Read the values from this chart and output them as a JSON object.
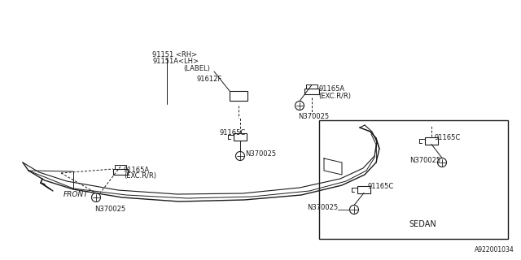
{
  "bg_color": "#ffffff",
  "line_color": "#1a1a1a",
  "text_color": "#1a1a1a",
  "part_number_bottom": "A922001034",
  "labels": {
    "front": "FRONT",
    "sedan": "SEDAN",
    "label_bracket": "(LABEL)",
    "p91151_rh": "91151 <RH>",
    "p91151_lh": "91151A<LH>",
    "p91165a_top": "91165A",
    "p91165a_top2": "(EXC.R/R)",
    "p91165a_bot": "91165A",
    "p91165a_bot2": "(EXC.R/R)",
    "p91165c_mid": "91165C",
    "p91165c_right": "91165C",
    "p91165c_sedan": "91165C",
    "p91612f": "91612F",
    "n370025_top": "N370025",
    "n370025_mid": "N370025",
    "n370025_bot": "N370025",
    "n370025_right": "N370025",
    "n370025_sedan": "N370025"
  },
  "font_size": 6.5
}
